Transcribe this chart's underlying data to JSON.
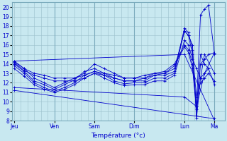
{
  "bg_color": "#c8e8f0",
  "grid_color": "#9bbfcc",
  "line_color": "#0000cc",
  "xlabel": "Température (°c)",
  "ylim": [
    8,
    20.5
  ],
  "ytick_vals": [
    8,
    9,
    10,
    11,
    12,
    13,
    14,
    15,
    16,
    17,
    18,
    19,
    20
  ],
  "day_labels": [
    "Jeu",
    "Ven",
    "Sam",
    "Dim",
    "Lun",
    "Ma"
  ],
  "day_x": [
    0.0,
    0.2,
    0.4,
    0.6,
    0.85,
    1.0
  ],
  "series": [
    {
      "x": [
        0.0,
        0.05,
        0.1,
        0.15,
        0.2,
        0.25,
        0.3,
        0.35,
        0.4,
        0.45,
        0.5,
        0.55,
        0.6,
        0.65,
        0.7,
        0.75,
        0.8,
        0.85,
        0.87,
        0.89,
        0.91,
        0.93,
        0.95,
        0.97,
        1.0
      ],
      "y": [
        14.3,
        13.5,
        12.5,
        12.0,
        11.5,
        12.0,
        12.5,
        13.0,
        14.0,
        13.5,
        13.0,
        12.5,
        12.5,
        12.5,
        13.0,
        13.0,
        13.5,
        17.5,
        17.0,
        16.0,
        8.5,
        14.0,
        14.5,
        15.0,
        15.2
      ]
    },
    {
      "x": [
        0.0,
        0.05,
        0.1,
        0.15,
        0.2,
        0.25,
        0.3,
        0.35,
        0.4,
        0.45,
        0.5,
        0.55,
        0.6,
        0.65,
        0.7,
        0.75,
        0.8,
        0.85,
        0.87,
        0.89,
        0.91,
        0.93,
        0.95,
        0.97,
        1.0
      ],
      "y": [
        14.0,
        13.2,
        12.2,
        11.8,
        11.3,
        11.8,
        12.3,
        13.2,
        13.5,
        13.0,
        12.5,
        12.2,
        12.2,
        12.2,
        12.8,
        12.8,
        13.2,
        17.8,
        17.3,
        15.5,
        8.2,
        12.5,
        13.0,
        13.5,
        11.8
      ]
    },
    {
      "x": [
        0.0,
        0.05,
        0.1,
        0.15,
        0.2,
        0.25,
        0.3,
        0.35,
        0.4,
        0.45,
        0.5,
        0.55,
        0.6,
        0.65,
        0.7,
        0.75,
        0.8,
        0.85,
        0.87,
        0.89,
        0.91,
        0.93,
        0.95,
        0.97,
        1.0
      ],
      "y": [
        13.8,
        13.0,
        12.0,
        11.5,
        11.1,
        11.5,
        12.0,
        12.8,
        13.2,
        12.8,
        12.2,
        11.9,
        12.0,
        12.0,
        12.5,
        12.5,
        13.0,
        17.5,
        17.0,
        15.0,
        10.5,
        12.0,
        12.5,
        13.0,
        12.2
      ]
    },
    {
      "x": [
        0.0,
        0.05,
        0.1,
        0.15,
        0.2,
        0.25,
        0.3,
        0.35,
        0.4,
        0.45,
        0.5,
        0.55,
        0.6,
        0.65,
        0.7,
        0.75,
        0.8,
        0.85,
        0.87,
        0.89,
        0.91,
        0.93,
        0.95,
        1.0
      ],
      "y": [
        13.5,
        12.7,
        11.8,
        11.3,
        11.0,
        11.3,
        11.8,
        12.5,
        13.0,
        12.5,
        12.0,
        11.7,
        11.8,
        11.8,
        12.2,
        12.2,
        12.8,
        16.5,
        16.0,
        14.5,
        13.5,
        12.5,
        15.0,
        13.0
      ]
    },
    {
      "x": [
        0.0,
        0.05,
        0.1,
        0.15,
        0.2,
        0.25,
        0.3,
        0.35,
        0.4,
        0.45,
        0.5,
        0.55,
        0.6,
        0.65,
        0.7,
        0.75,
        0.8,
        0.85,
        0.87,
        0.89,
        0.91,
        0.93,
        0.95,
        0.97,
        1.0
      ],
      "y": [
        14.2,
        13.5,
        13.0,
        12.8,
        12.5,
        12.5,
        12.5,
        12.8,
        13.2,
        13.0,
        12.8,
        12.5,
        12.5,
        12.8,
        13.0,
        13.2,
        14.0,
        16.0,
        15.5,
        14.0,
        9.5,
        19.2,
        19.8,
        20.2,
        15.0
      ]
    },
    {
      "x": [
        0.0,
        0.05,
        0.1,
        0.15,
        0.2,
        0.25,
        0.3,
        0.35,
        0.4,
        0.45,
        0.5,
        0.55,
        0.6,
        0.65,
        0.7,
        0.75,
        0.8,
        0.85,
        0.87,
        0.89,
        0.91,
        0.93,
        0.95,
        0.97
      ],
      "y": [
        14.1,
        13.3,
        12.8,
        12.5,
        12.2,
        12.2,
        12.2,
        12.5,
        13.0,
        12.8,
        12.5,
        12.2,
        12.2,
        12.5,
        12.8,
        13.0,
        13.8,
        15.8,
        15.2,
        13.5,
        9.2,
        15.0,
        14.0,
        13.5
      ]
    },
    {
      "x": [
        0.0,
        0.85,
        1.0
      ],
      "y": [
        14.3,
        15.0,
        8.0
      ]
    },
    {
      "x": [
        0.0,
        1.0
      ],
      "y": [
        11.2,
        8.2
      ]
    },
    {
      "x": [
        0.0,
        0.85,
        0.91,
        0.95,
        1.0
      ],
      "y": [
        11.5,
        10.5,
        9.5,
        13.0,
        15.2
      ]
    }
  ]
}
